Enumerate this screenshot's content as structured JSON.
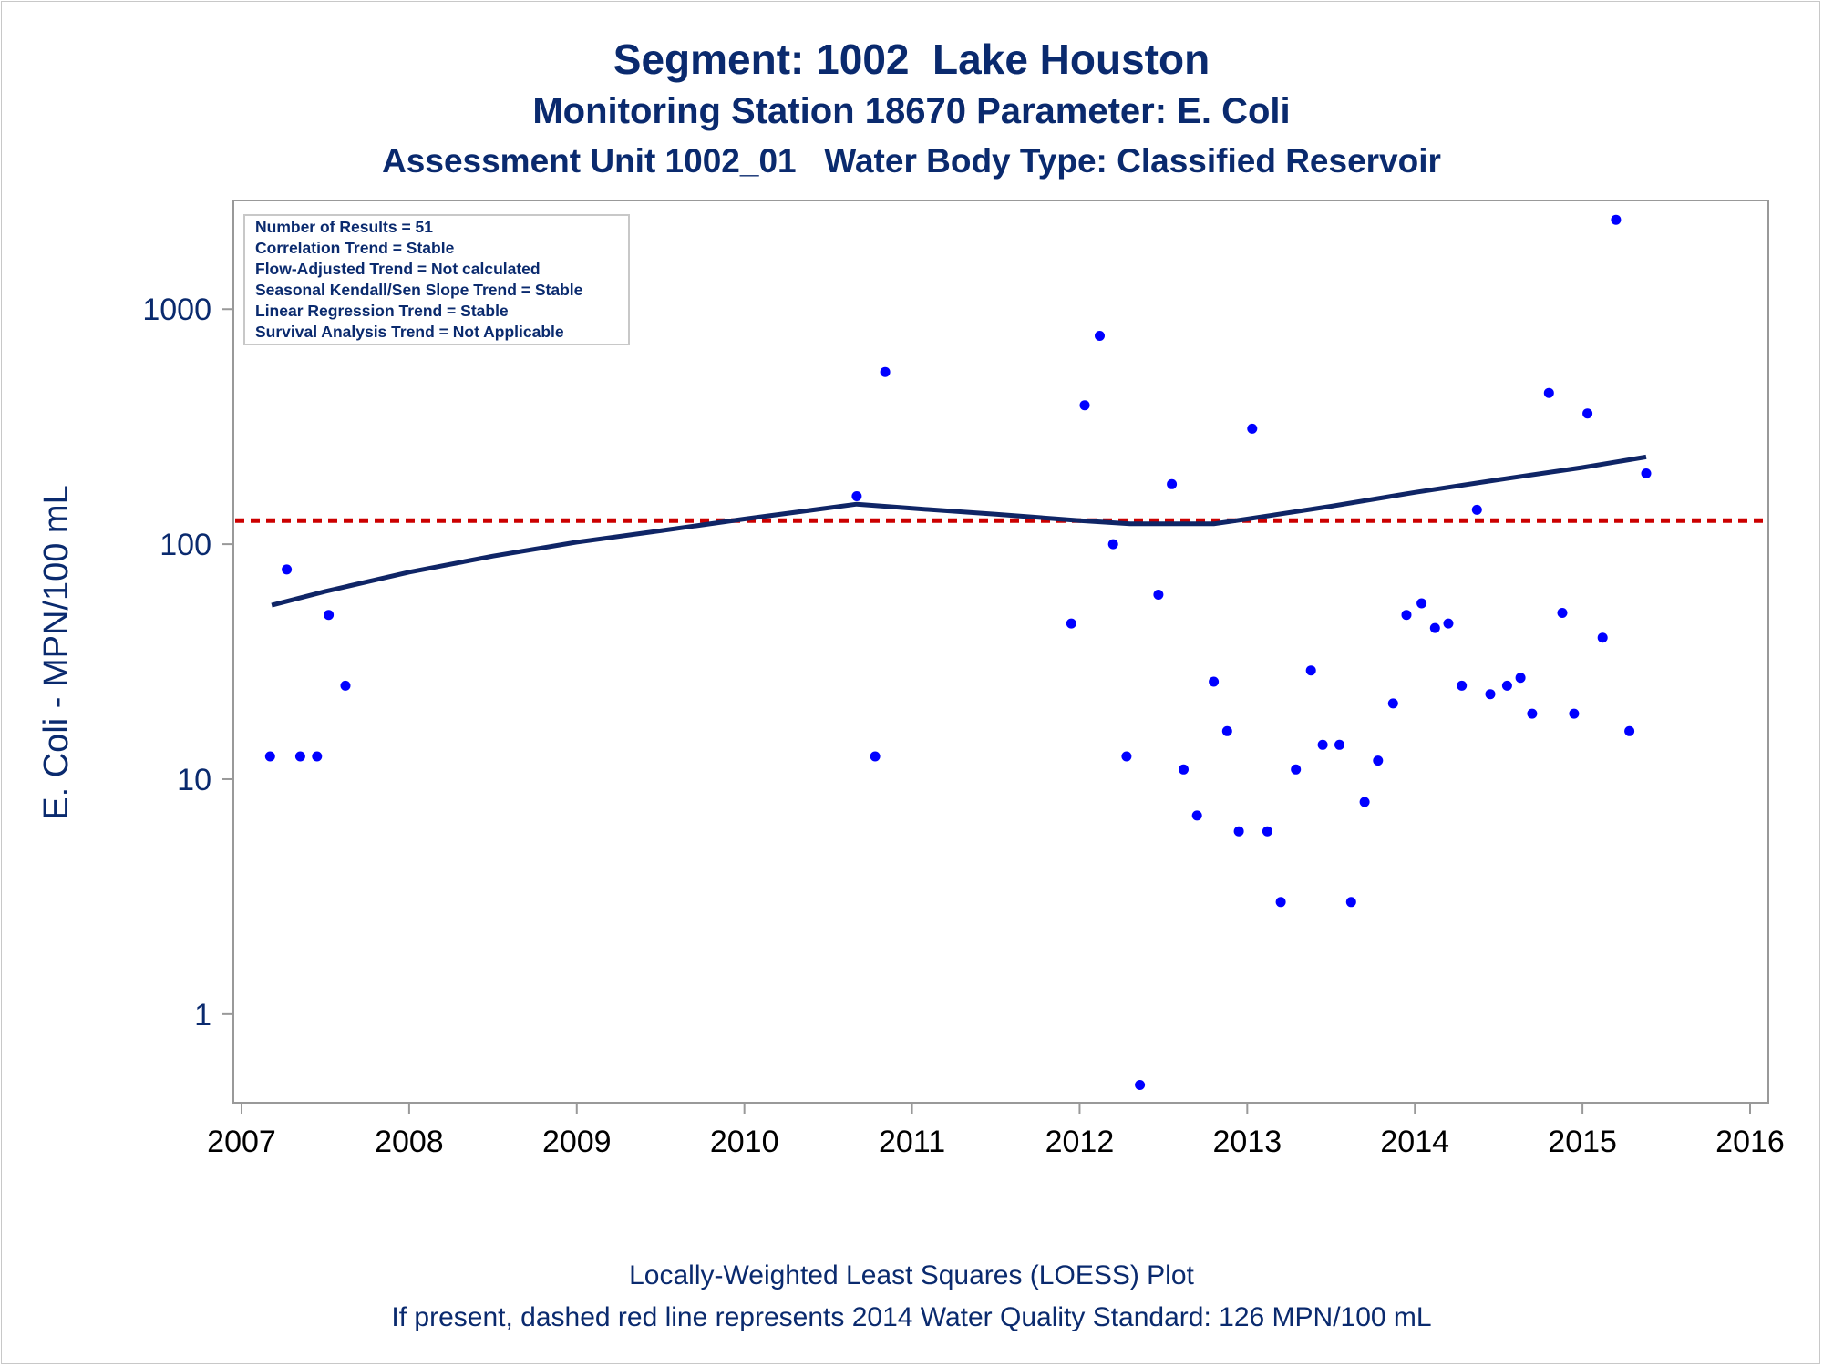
{
  "titles": {
    "line1": "Segment: 1002  Lake Houston",
    "line2": "Monitoring Station 18670 Parameter: E. Coli",
    "line3": "Assessment Unit 1002_01   Water Body Type: Classified Reservoir"
  },
  "stats_box": [
    "Number of Results = 51",
    "Correlation Trend = Stable",
    "Flow-Adjusted Trend = Not calculated",
    "Seasonal Kendall/Sen Slope Trend = Stable",
    "Linear Regression Trend = Stable",
    "Survival Analysis Trend = Not Applicable"
  ],
  "footer": {
    "line1": "Locally-Weighted Least Squares (LOESS) Plot",
    "line2": "If present, dashed red line represents 2014 Water Quality Standard: 126 MPN/100 mL"
  },
  "colors": {
    "text": "#0a2a6e",
    "points": "#0000ff",
    "loess_line": "#0f2566",
    "standard_line": "#cc0000",
    "axis": "#999999"
  },
  "chart_data": {
    "type": "scatter",
    "ylabel": "E. Coli - MPN/100 mL",
    "xlabel": "",
    "y_scale": "log",
    "xlim": [
      2007,
      2016
    ],
    "ylim": [
      0.42,
      2900
    ],
    "x_ticks": [
      2007,
      2008,
      2009,
      2010,
      2011,
      2012,
      2013,
      2014,
      2015,
      2016
    ],
    "y_ticks": [
      1,
      10,
      100,
      1000
    ],
    "grid": false,
    "legend": "none",
    "standard_line": {
      "value": 126,
      "style": "dashed"
    },
    "points": [
      [
        2007.17,
        12.5
      ],
      [
        2007.27,
        78
      ],
      [
        2007.35,
        12.5
      ],
      [
        2007.45,
        12.5
      ],
      [
        2007.52,
        50
      ],
      [
        2007.62,
        25
      ],
      [
        2010.67,
        160
      ],
      [
        2010.78,
        12.5
      ],
      [
        2010.84,
        540
      ],
      [
        2011.95,
        46
      ],
      [
        2012.03,
        390
      ],
      [
        2012.12,
        770
      ],
      [
        2012.2,
        100
      ],
      [
        2012.28,
        12.5
      ],
      [
        2012.36,
        0.5
      ],
      [
        2012.47,
        61
      ],
      [
        2012.55,
        180
      ],
      [
        2012.62,
        11
      ],
      [
        2012.7,
        7
      ],
      [
        2012.8,
        26
      ],
      [
        2012.88,
        16
      ],
      [
        2012.95,
        6
      ],
      [
        2013.03,
        310
      ],
      [
        2013.12,
        6
      ],
      [
        2013.2,
        3
      ],
      [
        2013.29,
        11
      ],
      [
        2013.38,
        29
      ],
      [
        2013.45,
        14
      ],
      [
        2013.55,
        14
      ],
      [
        2013.62,
        3
      ],
      [
        2013.7,
        8
      ],
      [
        2013.78,
        12
      ],
      [
        2013.87,
        21
      ],
      [
        2013.95,
        50
      ],
      [
        2014.04,
        56
      ],
      [
        2014.12,
        44
      ],
      [
        2014.2,
        46
      ],
      [
        2014.28,
        25
      ],
      [
        2014.37,
        140
      ],
      [
        2014.45,
        23
      ],
      [
        2014.55,
        25
      ],
      [
        2014.63,
        27
      ],
      [
        2014.7,
        19
      ],
      [
        2014.8,
        440
      ],
      [
        2014.88,
        51
      ],
      [
        2014.95,
        19
      ],
      [
        2015.03,
        360
      ],
      [
        2015.12,
        40
      ],
      [
        2015.2,
        2400
      ],
      [
        2015.28,
        16
      ],
      [
        2015.38,
        200
      ]
    ],
    "loess": [
      [
        2007.18,
        55
      ],
      [
        2007.5,
        63
      ],
      [
        2008,
        76
      ],
      [
        2008.5,
        89
      ],
      [
        2009,
        102
      ],
      [
        2009.5,
        114
      ],
      [
        2010,
        128
      ],
      [
        2010.67,
        148
      ],
      [
        2011,
        142
      ],
      [
        2011.5,
        134
      ],
      [
        2012,
        126
      ],
      [
        2012.3,
        122
      ],
      [
        2012.8,
        122
      ],
      [
        2013,
        128
      ],
      [
        2013.5,
        145
      ],
      [
        2014,
        166
      ],
      [
        2014.5,
        188
      ],
      [
        2015,
        212
      ],
      [
        2015.38,
        235
      ]
    ]
  }
}
